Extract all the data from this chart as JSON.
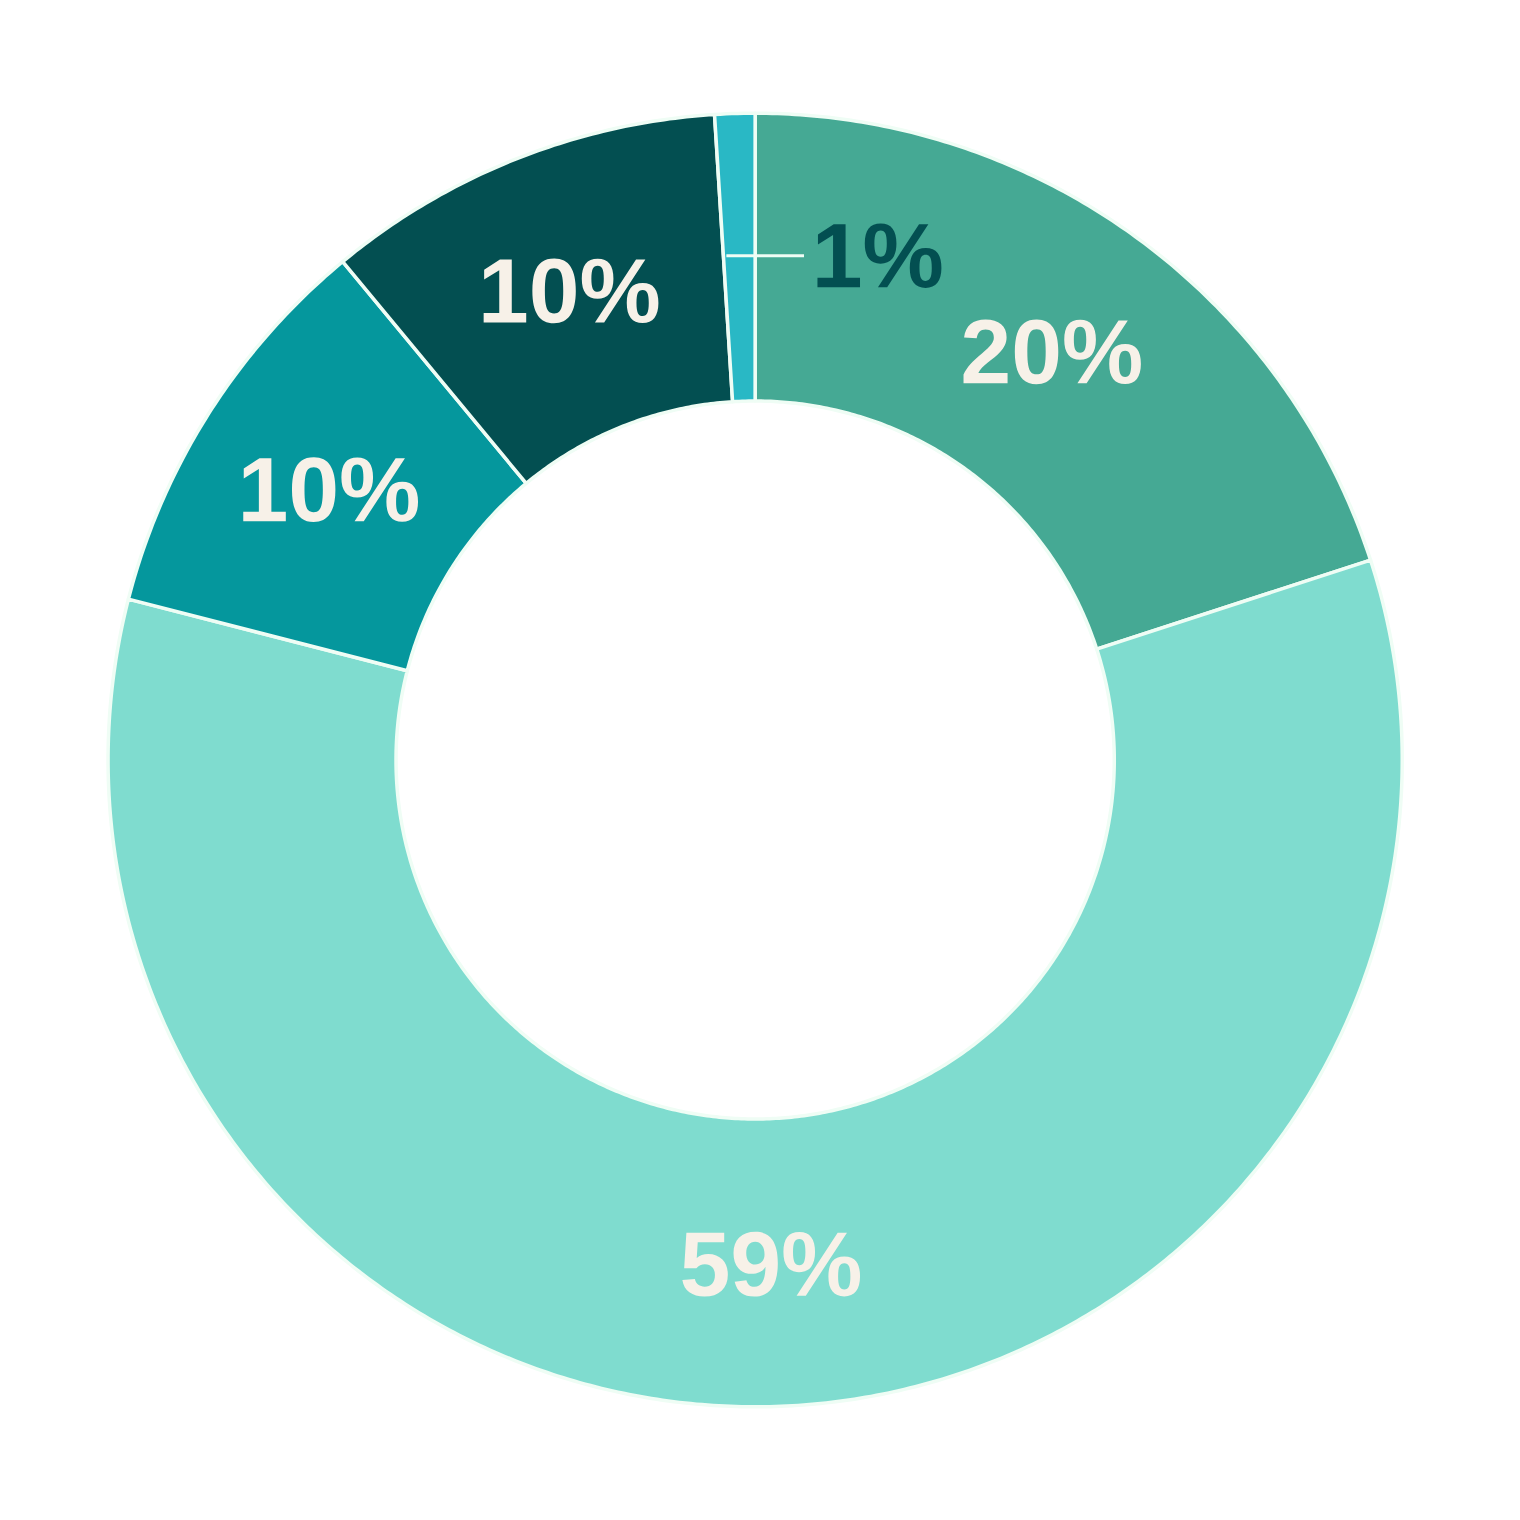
{
  "chart_data": {
    "type": "donut",
    "categories": [
      null,
      null,
      null,
      null,
      null
    ],
    "values": [
      20,
      59,
      10,
      10,
      1
    ],
    "colors": [
      "#45a994",
      "#7fdccf",
      "#05979d",
      "#034f51",
      "#29b8c5"
    ],
    "value_labels": [
      "20%",
      "59%",
      "10%",
      "10%",
      "1%"
    ]
  }
}
